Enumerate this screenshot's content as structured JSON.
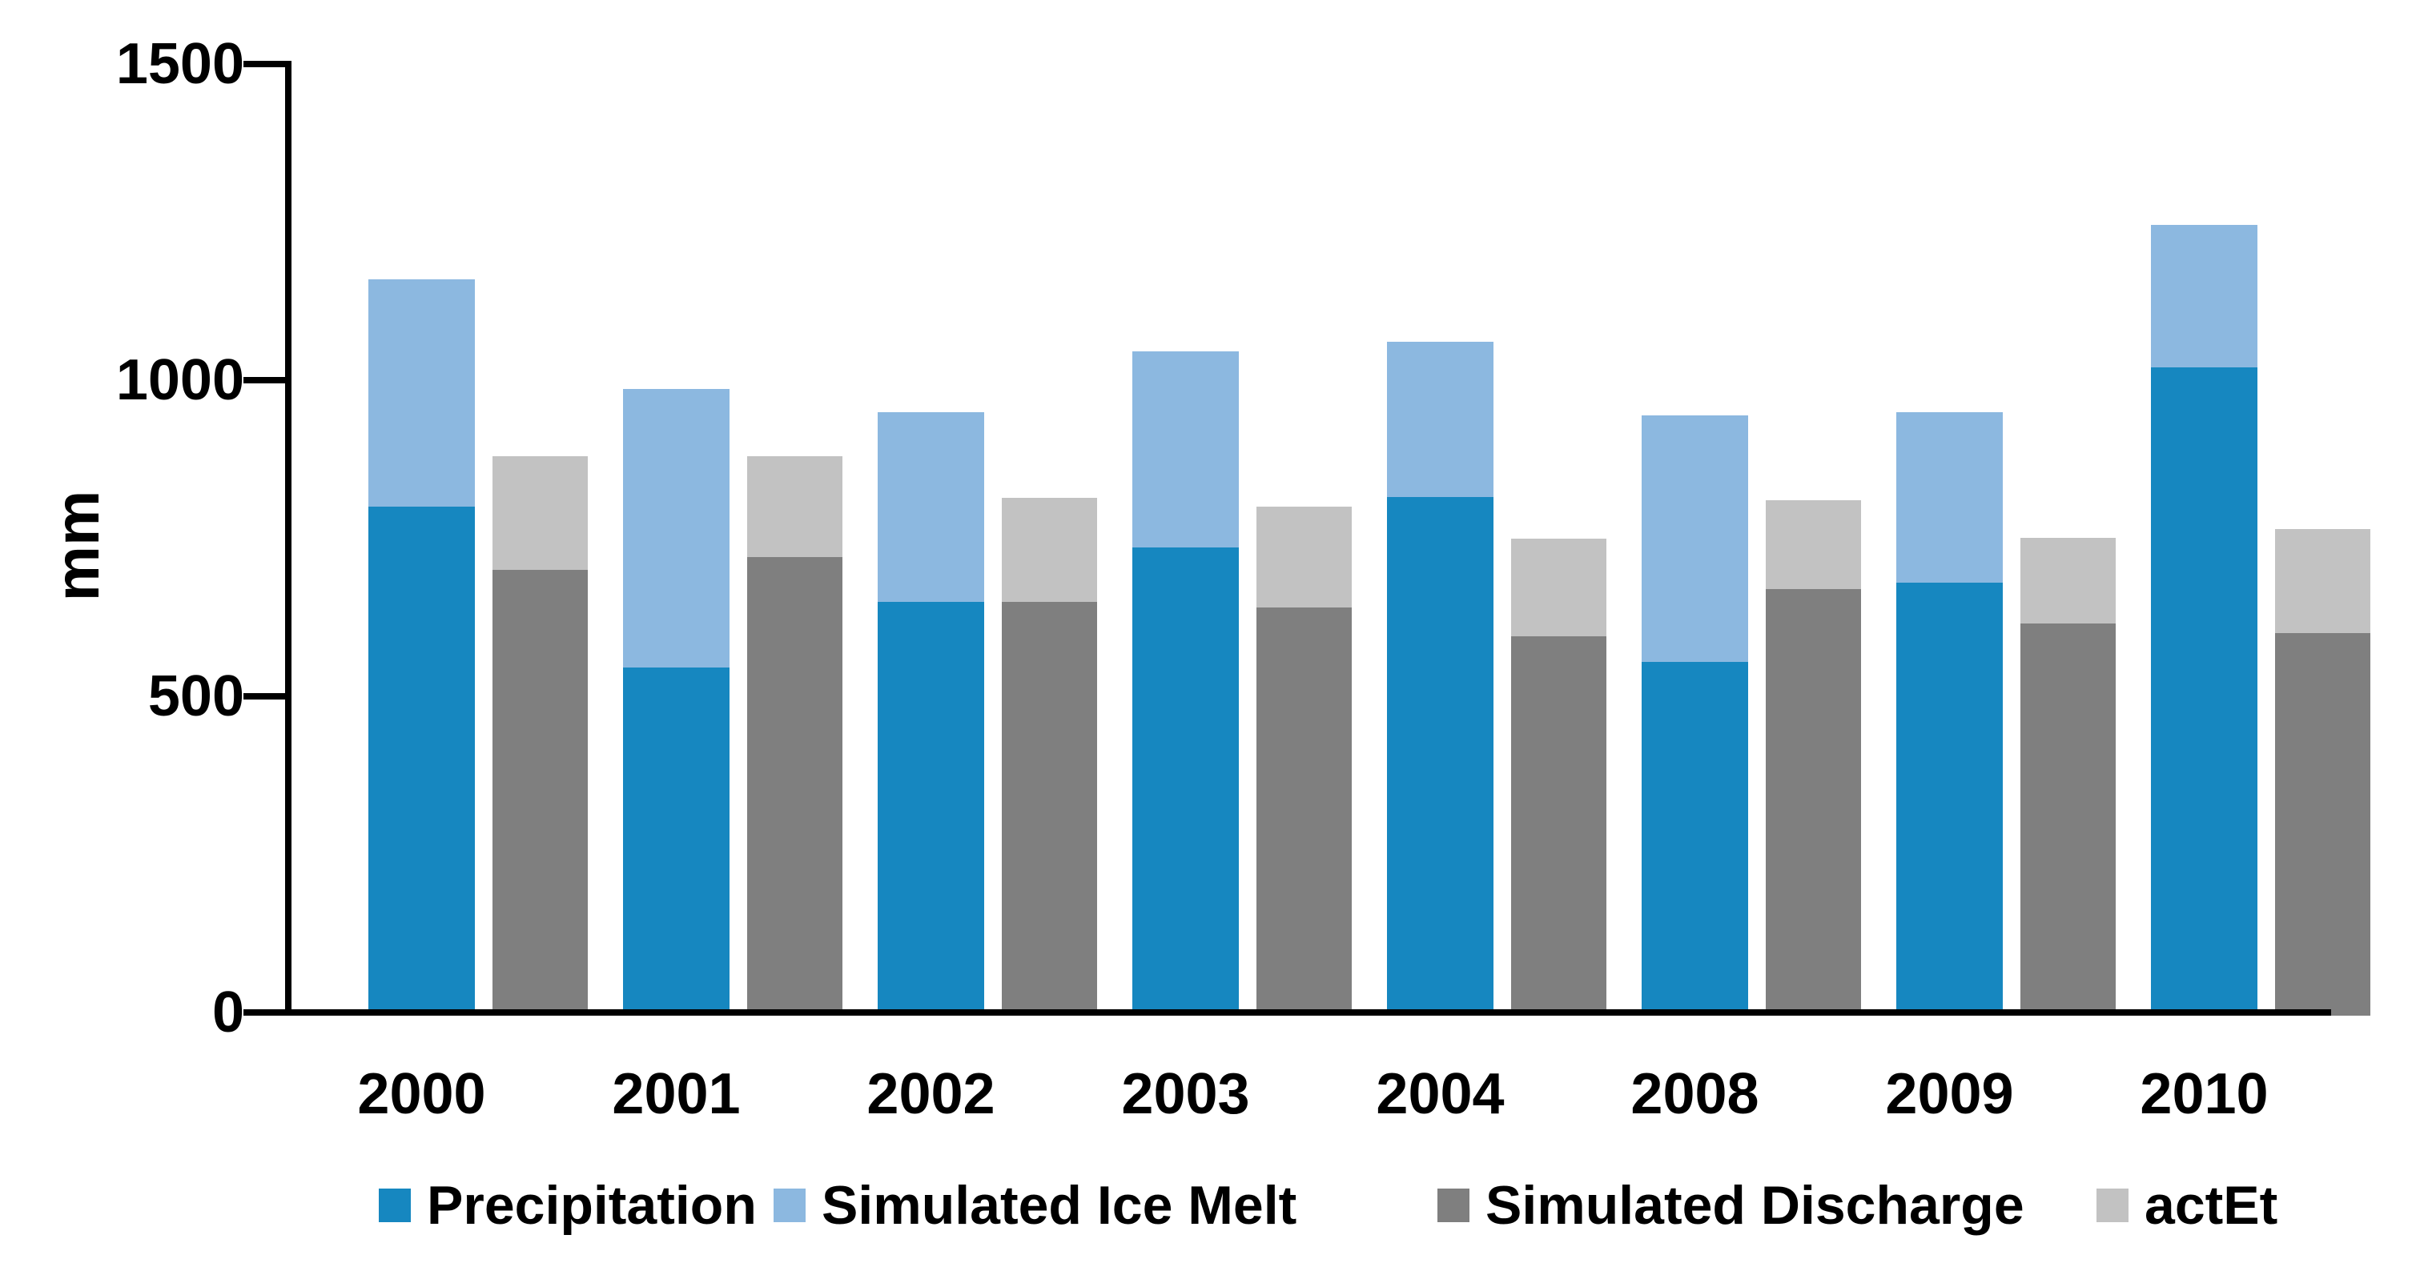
{
  "chart_data": {
    "type": "bar",
    "stacked": true,
    "title": "",
    "ylabel": "mm",
    "xlabel": "",
    "ylim": [
      0,
      1500
    ],
    "yticks": [
      0,
      500,
      1000,
      1500
    ],
    "ytick_labels": [
      "0",
      "500",
      "1000",
      "1500"
    ],
    "grid": false,
    "legend_position": "bottom",
    "background": "#ffffff",
    "axis_color": "#000000",
    "text_color": "#000000",
    "categories": [
      "2000",
      "2001",
      "2002",
      "2003",
      "2004",
      "2008",
      "2009",
      "2010"
    ],
    "bars_per_group": 2,
    "series": [
      {
        "name": "Precipitation",
        "color": "#1687c0",
        "stack": "input",
        "values": [
          805,
          550,
          655,
          740,
          820,
          560,
          685,
          1025
        ]
      },
      {
        "name": "Simulated Ice Melt",
        "color": "#8cb8e0",
        "stack": "input",
        "values": [
          360,
          440,
          300,
          310,
          245,
          390,
          270,
          225
        ]
      },
      {
        "name": "Simulated Discharge",
        "color": "#7f7f7f",
        "stack": "output",
        "values": [
          705,
          725,
          655,
          645,
          600,
          675,
          620,
          605
        ]
      },
      {
        "name": "actEt",
        "color": "#c2c2c2",
        "stack": "output",
        "values": [
          180,
          160,
          165,
          160,
          155,
          140,
          135,
          165
        ]
      }
    ]
  }
}
